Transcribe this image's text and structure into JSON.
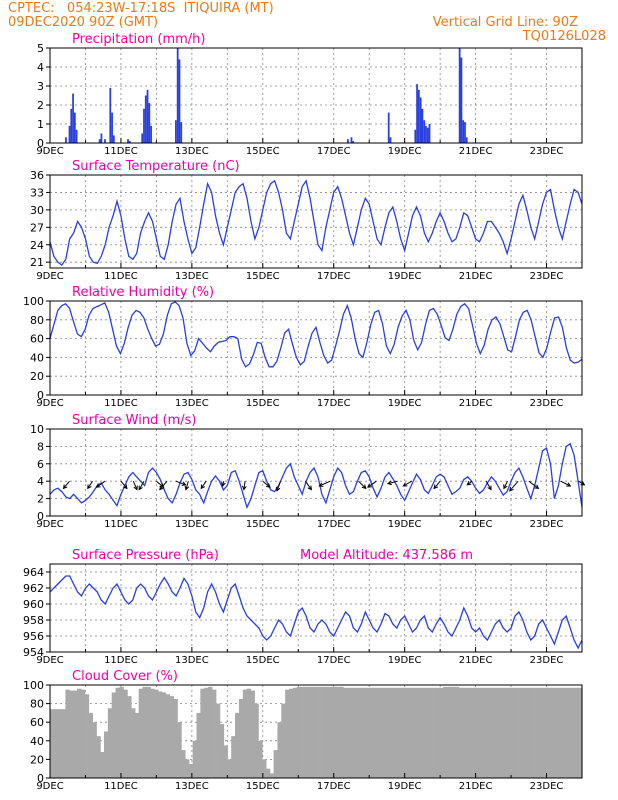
{
  "header": {
    "left_line1": "CPTEC:   054:23W-17:18S  ITIQUIRA (MT)",
    "left_line2": "09DEC2020 90Z (GMT)",
    "right_line1": "Vertical Grid Line: 90Z",
    "right_line2": "TQ0126L028",
    "color_orange": "#e87a1a",
    "color_magenta": "#ee00aa",
    "line_color": "#2a3fe0",
    "cloud_color": "#a9a9a9"
  },
  "chart_data": [
    {
      "type": "bar",
      "title": "Precipitation (mm/h)",
      "x_labels": [
        "9DEC",
        "11DEC",
        "13DEC",
        "15DEC",
        "17DEC",
        "19DEC",
        "21DEC",
        "23DEC"
      ],
      "ylim": [
        0,
        5
      ],
      "yticks": [
        0,
        1,
        2,
        3,
        4,
        5
      ],
      "x_range_days": [
        0,
        15
      ],
      "grid": true,
      "bars": [
        {
          "x": 0.45,
          "y": 0.3
        },
        {
          "x": 0.55,
          "y": 0.9
        },
        {
          "x": 0.6,
          "y": 1.8
        },
        {
          "x": 0.65,
          "y": 2.6
        },
        {
          "x": 0.7,
          "y": 1.6
        },
        {
          "x": 0.75,
          "y": 0.7
        },
        {
          "x": 1.4,
          "y": 0.2
        },
        {
          "x": 1.45,
          "y": 0.5
        },
        {
          "x": 1.55,
          "y": 0.2
        },
        {
          "x": 1.7,
          "y": 2.9
        },
        {
          "x": 1.75,
          "y": 1.6
        },
        {
          "x": 1.8,
          "y": 0.4
        },
        {
          "x": 2.2,
          "y": 0.2
        },
        {
          "x": 2.25,
          "y": 0.1
        },
        {
          "x": 2.6,
          "y": 0.5
        },
        {
          "x": 2.65,
          "y": 1.8
        },
        {
          "x": 2.7,
          "y": 2.5
        },
        {
          "x": 2.75,
          "y": 2.8
        },
        {
          "x": 2.8,
          "y": 2.1
        },
        {
          "x": 2.85,
          "y": 0.9
        },
        {
          "x": 3.55,
          "y": 1.2
        },
        {
          "x": 3.6,
          "y": 5.0
        },
        {
          "x": 3.65,
          "y": 4.4
        },
        {
          "x": 3.7,
          "y": 1.1
        },
        {
          "x": 8.4,
          "y": 0.2
        },
        {
          "x": 8.5,
          "y": 0.3
        },
        {
          "x": 8.55,
          "y": 0.1
        },
        {
          "x": 9.55,
          "y": 1.6
        },
        {
          "x": 9.6,
          "y": 0.3
        },
        {
          "x": 10.3,
          "y": 0.7
        },
        {
          "x": 10.35,
          "y": 3.1
        },
        {
          "x": 10.4,
          "y": 2.8
        },
        {
          "x": 10.45,
          "y": 2.4
        },
        {
          "x": 10.5,
          "y": 1.8
        },
        {
          "x": 10.55,
          "y": 1.2
        },
        {
          "x": 10.6,
          "y": 0.9
        },
        {
          "x": 10.65,
          "y": 0.8
        },
        {
          "x": 10.7,
          "y": 1.0
        },
        {
          "x": 11.55,
          "y": 5.0
        },
        {
          "x": 11.6,
          "y": 4.5
        },
        {
          "x": 11.65,
          "y": 1.2
        },
        {
          "x": 11.7,
          "y": 1.1
        },
        {
          "x": 11.75,
          "y": 0.3
        }
      ]
    },
    {
      "type": "line",
      "title": "Surface Temperature (nC)",
      "x_labels": [
        "9DEC",
        "11DEC",
        "13DEC",
        "15DEC",
        "17DEC",
        "19DEC",
        "21DEC",
        "23DEC"
      ],
      "ylim": [
        20,
        36
      ],
      "yticks": [
        21,
        24,
        27,
        30,
        33,
        36
      ],
      "x_range_days": [
        0,
        15
      ],
      "grid": true,
      "y": [
        24.5,
        22,
        21,
        20.5,
        21.5,
        25,
        26,
        28,
        27,
        25,
        22,
        21,
        20.8,
        22,
        24,
        27,
        29,
        31.5,
        29,
        25,
        22,
        21.5,
        22.5,
        26,
        28,
        29.5,
        28,
        25,
        22,
        21.5,
        24,
        28,
        31,
        32,
        28,
        25,
        22.5,
        23.5,
        27,
        31,
        34.5,
        33,
        29,
        26,
        24,
        27,
        30,
        33,
        34,
        34.5,
        32,
        28,
        25,
        27,
        30,
        33,
        34.5,
        35,
        33,
        30,
        26,
        25,
        28,
        31,
        34,
        35,
        32,
        28,
        24,
        23,
        27,
        30,
        33,
        34,
        32,
        29,
        26,
        24,
        27,
        30,
        32,
        31,
        28,
        25,
        24,
        27,
        29.5,
        30.5,
        28,
        25,
        23,
        26,
        29,
        30.5,
        29,
        26,
        24.5,
        26,
        28,
        29.5,
        28,
        26,
        24.5,
        25,
        27,
        29.5,
        29,
        27,
        25,
        24.5,
        26,
        28,
        28,
        27,
        26,
        24.5,
        22.5,
        25,
        28,
        31,
        32.5,
        30,
        27,
        25,
        28,
        31,
        33,
        33.5,
        30,
        27,
        25,
        28,
        31,
        33.5,
        33,
        31
      ]
    },
    {
      "type": "line",
      "title": "Relative Humidity (%)",
      "x_labels": [
        "9DEC",
        "11DEC",
        "13DEC",
        "15DEC",
        "17DEC",
        "19DEC",
        "21DEC",
        "23DEC"
      ],
      "ylim": [
        0,
        100
      ],
      "yticks": [
        0,
        20,
        40,
        60,
        80,
        100
      ],
      "x_range_days": [
        0,
        15
      ],
      "grid": true,
      "y": [
        60,
        75,
        90,
        95,
        97,
        92,
        78,
        65,
        62,
        70,
        85,
        92,
        94,
        96,
        98,
        88,
        70,
        52,
        44,
        55,
        72,
        85,
        90,
        88,
        82,
        70,
        60,
        52,
        54,
        65,
        85,
        97,
        99,
        95,
        82,
        55,
        42,
        47,
        60,
        55,
        50,
        46,
        52,
        56,
        57,
        58,
        62,
        62,
        60,
        38,
        30,
        33,
        43,
        56,
        55,
        40,
        30,
        30,
        36,
        50,
        66,
        70,
        54,
        40,
        32,
        36,
        52,
        66,
        72,
        56,
        42,
        34,
        37,
        52,
        68,
        86,
        95,
        82,
        60,
        44,
        40,
        56,
        75,
        88,
        90,
        76,
        52,
        44,
        54,
        72,
        84,
        90,
        80,
        58,
        48,
        56,
        75,
        90,
        92,
        86,
        74,
        61,
        58,
        70,
        86,
        94,
        97,
        92,
        74,
        55,
        44,
        53,
        70,
        80,
        83,
        76,
        62,
        48,
        46,
        62,
        80,
        88,
        90,
        80,
        62,
        45,
        40,
        50,
        67,
        82,
        83,
        72,
        50,
        37,
        34,
        35,
        38
      ]
    },
    {
      "type": "line",
      "title": "Surface Wind (m/s)",
      "x_labels": [
        "9DEC",
        "11DEC",
        "13DEC",
        "15DEC",
        "17DEC",
        "19DEC",
        "21DEC",
        "23DEC"
      ],
      "ylim": [
        0,
        10
      ],
      "yticks": [
        0,
        2,
        4,
        6,
        8,
        10
      ],
      "x_range_days": [
        0,
        15
      ],
      "grid": true,
      "y": [
        2.5,
        3.0,
        3.2,
        2.8,
        2.2,
        2.0,
        2.5,
        2.0,
        1.5,
        1.8,
        2.2,
        2.8,
        3.5,
        3.8,
        3.0,
        2.5,
        1.8,
        1.2,
        2.5,
        3.5,
        4.5,
        5.0,
        4.5,
        4.0,
        3.5,
        5.0,
        5.5,
        5.0,
        4.2,
        3.0,
        2.0,
        1.5,
        2.5,
        3.8,
        4.8,
        5.0,
        4.2,
        3.0,
        2.5,
        1.5,
        2.8,
        4.0,
        4.6,
        4.0,
        3.0,
        3.5,
        5.0,
        5.2,
        4.0,
        2.5,
        1.0,
        2.0,
        3.5,
        5.0,
        5.2,
        4.0,
        3.0,
        2.8,
        3.5,
        4.5,
        5.5,
        6.0,
        4.5,
        3.5,
        2.5,
        4.0,
        5.0,
        5.5,
        4.5,
        2.5,
        1.5,
        3.0,
        4.5,
        5.5,
        5.0,
        3.5,
        2.5,
        2.8,
        4.0,
        5.0,
        5.2,
        4.5,
        3.2,
        2.2,
        3.2,
        4.5,
        5.0,
        4.3,
        3.5,
        2.5,
        1.8,
        2.8,
        3.8,
        4.8,
        4.2,
        3.0,
        2.6,
        3.5,
        4.5,
        4.8,
        4.5,
        3.5,
        2.5,
        2.8,
        3.2,
        4.2,
        4.5,
        4.0,
        3.2,
        2.6,
        3.0,
        3.8,
        4.5,
        4.0,
        3.2,
        2.4,
        2.8,
        4.0,
        5.0,
        5.5,
        4.5,
        3.2,
        2.0,
        3.5,
        5.5,
        7.5,
        7.8,
        6.0,
        2.0,
        3.5,
        6.0,
        8.0,
        8.3,
        7.0,
        4.0,
        1.0
      ]
    },
    {
      "type": "line",
      "title": "Surface Pressure (hPa)",
      "annotation": "Model Altitude: 437.586 m",
      "x_labels": [
        "9DEC",
        "11DEC",
        "13DEC",
        "15DEC",
        "17DEC",
        "19DEC",
        "21DEC",
        "23DEC"
      ],
      "ylim": [
        954,
        965
      ],
      "yticks": [
        954,
        956,
        958,
        960,
        962,
        964
      ],
      "x_range_days": [
        0,
        15
      ],
      "grid": true,
      "y": [
        961.5,
        962,
        962.5,
        963,
        963.5,
        963.5,
        962.5,
        961.5,
        961,
        962,
        962.5,
        962,
        961.5,
        960.5,
        960,
        961,
        962,
        962.5,
        961.5,
        960.5,
        960,
        960.5,
        962,
        962.5,
        962,
        961,
        960.5,
        961.5,
        962.5,
        963.3,
        962.5,
        961.5,
        961,
        962,
        963.2,
        962.5,
        961,
        959,
        958.3,
        959.5,
        961.5,
        962.5,
        961.5,
        960,
        959,
        960.5,
        962,
        962.5,
        961,
        959.5,
        958.5,
        958,
        957.5,
        957,
        956,
        955.5,
        956,
        957,
        958,
        957.5,
        956.5,
        956,
        957.5,
        959,
        959.5,
        958.5,
        957,
        956.5,
        957.5,
        958,
        957.5,
        956.5,
        956,
        957,
        958,
        959,
        958.5,
        957,
        956.5,
        957.5,
        959,
        958,
        957,
        956.5,
        957.5,
        958.8,
        958.5,
        957.5,
        957,
        958,
        958.5,
        957.5,
        956.5,
        957,
        958,
        958.5,
        957,
        956.5,
        957.5,
        958.3,
        957.5,
        956.5,
        956,
        957,
        958,
        959.5,
        958.5,
        957,
        956.5,
        957,
        956,
        955.5,
        956.5,
        957.5,
        958,
        957,
        956.5,
        957,
        958.5,
        959,
        958,
        956.5,
        955.5,
        956,
        957.5,
        958,
        957,
        956,
        955,
        956.5,
        958,
        958.5,
        957,
        955.5,
        954.5,
        955.5
      ]
    },
    {
      "type": "area",
      "title": "Cloud Cover (%)",
      "x_labels": [
        "9DEC",
        "11DEC",
        "13DEC",
        "15DEC",
        "17DEC",
        "19DEC",
        "21DEC",
        "23DEC"
      ],
      "ylim": [
        0,
        100
      ],
      "yticks": [
        0,
        20,
        40,
        60,
        80,
        100
      ],
      "x_range_days": [
        0,
        15
      ],
      "grid": true,
      "y": [
        74,
        74,
        74,
        74,
        95,
        94,
        94,
        96,
        95,
        90,
        70,
        60,
        45,
        28,
        50,
        75,
        92,
        97,
        98,
        95,
        88,
        75,
        70,
        96,
        98,
        98,
        96,
        95,
        93,
        92,
        90,
        88,
        85,
        60,
        30,
        20,
        15,
        40,
        70,
        96,
        97,
        98,
        95,
        80,
        58,
        35,
        20,
        45,
        70,
        85,
        95,
        96,
        94,
        80,
        40,
        20,
        10,
        5,
        30,
        60,
        80,
        95,
        96,
        97,
        98,
        98,
        98,
        98,
        98,
        98,
        98,
        98,
        98,
        98,
        98,
        98,
        97,
        97,
        97,
        97,
        97,
        97,
        97,
        97,
        97,
        97,
        97,
        97,
        97,
        97,
        97,
        97,
        97,
        97,
        97,
        97,
        97,
        97,
        97,
        97,
        97,
        97,
        98,
        98,
        98,
        98,
        97,
        97,
        97,
        97,
        97,
        97,
        97,
        97,
        97,
        97,
        97,
        97,
        97,
        97,
        97,
        97,
        97,
        97,
        97,
        97,
        97,
        97,
        97,
        97,
        97,
        97,
        97,
        97,
        97,
        97,
        97,
        97
      ]
    }
  ]
}
